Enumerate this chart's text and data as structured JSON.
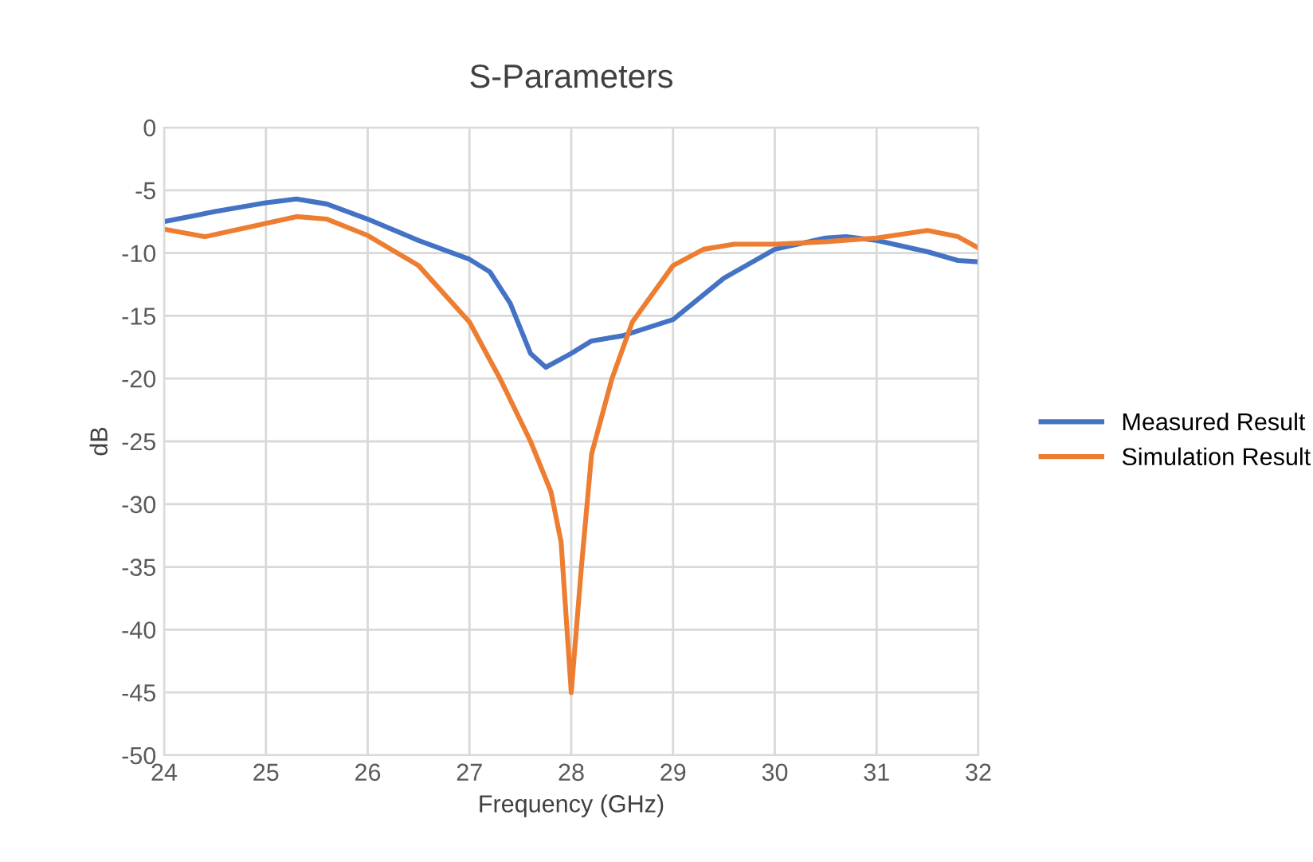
{
  "chart_data": {
    "type": "line",
    "title": "S-Parameters",
    "xlabel": "Frequency (GHz)",
    "ylabel": "dB",
    "xlim": [
      24,
      32
    ],
    "xticks": [
      24,
      25,
      26,
      27,
      28,
      29,
      30,
      31,
      32
    ],
    "ylim": [
      -50,
      0
    ],
    "yticks": [
      -50,
      -45,
      -40,
      -35,
      -30,
      -25,
      -20,
      -15,
      -10,
      -5,
      0
    ],
    "grid": true,
    "legend": "right",
    "marker": "none",
    "line_style": "solid",
    "series": [
      {
        "name": "Measured Result",
        "color": "#4472c4",
        "x": [
          24,
          24.5,
          25,
          25.3,
          25.6,
          26,
          26.5,
          27,
          27.2,
          27.4,
          27.6,
          27.75,
          28,
          28.2,
          28.5,
          29,
          29.5,
          30,
          30.5,
          30.7,
          31,
          31.5,
          31.8,
          32
        ],
        "values": [
          -7.5,
          -6.7,
          -6.0,
          -5.7,
          -6.1,
          -7.3,
          -9.0,
          -10.5,
          -11.5,
          -14,
          -18,
          -19.1,
          -18,
          -17,
          -16.6,
          -15.3,
          -12,
          -9.7,
          -8.8,
          -8.7,
          -9.0,
          -9.9,
          -10.6,
          -10.7
        ]
      },
      {
        "name": "Simulation Result",
        "color": "#ed7d31",
        "x": [
          24,
          24.4,
          24.8,
          25.3,
          25.6,
          26,
          26.5,
          27,
          27.3,
          27.6,
          27.8,
          27.9,
          28.0,
          28.1,
          28.2,
          28.4,
          28.6,
          29,
          29.3,
          29.6,
          30,
          30.5,
          31,
          31.5,
          31.8,
          32
        ],
        "values": [
          -8.1,
          -8.7,
          -8.0,
          -7.1,
          -7.3,
          -8.6,
          -11,
          -15.5,
          -20,
          -25,
          -29,
          -33,
          -45,
          -35,
          -26,
          -20,
          -15.5,
          -11,
          -9.7,
          -9.3,
          -9.3,
          -9.1,
          -8.8,
          -8.2,
          -8.7,
          -9.6
        ]
      }
    ]
  }
}
